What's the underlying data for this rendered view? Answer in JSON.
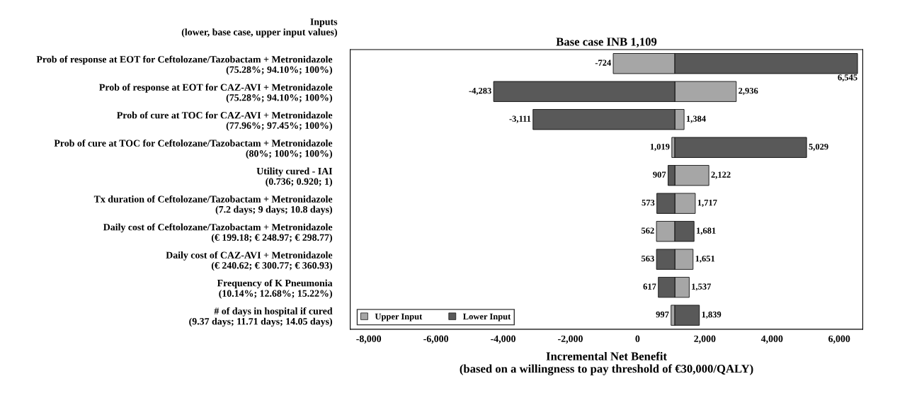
{
  "chart_data": {
    "type": "bar",
    "orientation": "horizontal",
    "title": "Base case INB 1,109",
    "xlabel": "Incremental Net Benefit\n(based on a willingness to pay threshold of €30,000/QALY)",
    "annotations": [
      "Inputs\n(lower, base case, upper input values)"
    ],
    "categories": [
      "Prob of response at EOT for Ceftolozane/Tazobactam + Metronidazole\n(75.28%; 94.10%; 100%)",
      "Prob of response at EOT for CAZ-AVI + Metronidazole\n(75.28%; 94.10%; 100%)",
      "Prob of cure at TOC for CAZ-AVI + Metronidazole\n(77.96%; 97.45%; 100%)",
      "Prob of cure at TOC for Ceftolozane/Tazobactam + Metronidazole\n(80%; 100%; 100%)",
      "Utility cured - IAI\n(0.736; 0.920; 1)",
      "Tx duration of Ceftolozane/Tazobactam + Metronidazole\n(7.2 days; 9 days; 10.8 days)",
      "Daily cost of Ceftolozane/Tazobactam + Metronidazole\n(€ 199.18; € 248.97; € 298.77)",
      "Daily cost of CAZ-AVI + Metronidazole\n(€ 240.62; € 300.77; € 360.93)",
      "Frequency of K Pneumonia\n(10.14%; 12.68%; 15.22%)",
      "# of days in hospital if cured\n(9.37 days; 11.71 days; 14.05 days)"
    ],
    "series": [
      {
        "name": "Upper Input",
        "color": "#a6a6a6",
        "base": [
          1109,
          1109,
          1109,
          1109,
          1109,
          1109,
          1109,
          1109,
          1109,
          1109
        ],
        "values": [
          -1833,
          1827,
          275,
          -90,
          1013,
          608,
          -547,
          542,
          428,
          -112
        ],
        "value_labels": [
          "-724",
          "2,936",
          "1,384",
          "1,019",
          "2,122",
          "1,717",
          "562",
          "1,651",
          "1,537",
          "997"
        ]
      },
      {
        "name": "Lower Input",
        "color": "#595959",
        "base": [
          1109,
          1109,
          1109,
          1109,
          1109,
          1109,
          1109,
          1109,
          1109,
          1109
        ],
        "values": [
          5436,
          -5392,
          -4220,
          3920,
          -202,
          -536,
          572,
          -546,
          -492,
          730
        ],
        "value_labels": [
          "6,545",
          "-4,283",
          "-3,111",
          "5,029",
          "907",
          "573",
          "1,681",
          "563",
          "617",
          "1,839"
        ]
      }
    ],
    "xlim": [
      -8550,
      6700
    ],
    "xticks": [
      {
        "value": -8000,
        "label": "-8,000"
      },
      {
        "value": -6000,
        "label": "-6,000"
      },
      {
        "value": -4000,
        "label": "-4,000"
      },
      {
        "value": -2000,
        "label": "-2,000"
      },
      0,
      {
        "value": 2000,
        "label": "2,000"
      },
      {
        "value": 4000,
        "label": "4,000"
      },
      {
        "value": 6000,
        "label": "6,000"
      }
    ],
    "grid": false,
    "legend": "bottom left"
  }
}
